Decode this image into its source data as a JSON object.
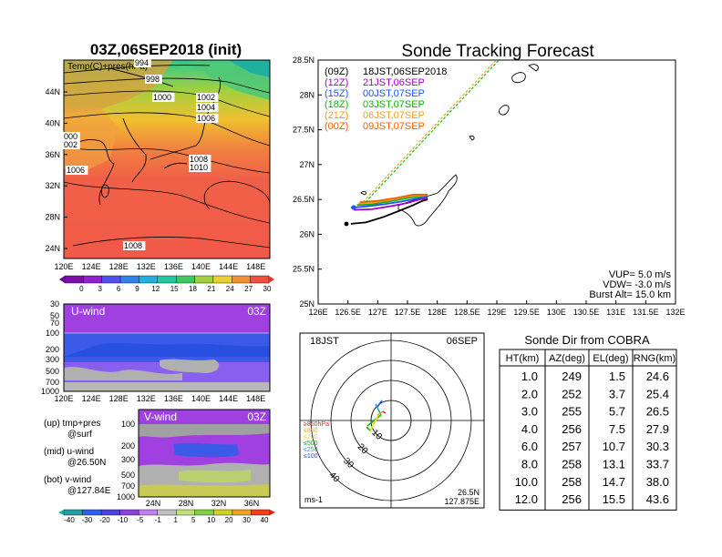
{
  "left_panel": {
    "title": "03Z,06SEP2018 (init)",
    "map_label": "Temp(C)+pres(hPa)",
    "lat_ticks": [
      "44N",
      "40N",
      "36N",
      "32N",
      "28N",
      "24N"
    ],
    "lon_ticks": [
      "120E",
      "124E",
      "128E",
      "132E",
      "136E",
      "140E",
      "144E",
      "148E"
    ],
    "isobar_labels": [
      "994",
      "998",
      "1000",
      "1002",
      "1004",
      "1006",
      "000",
      "002",
      "1006",
      "1008",
      "1010",
      "1008"
    ],
    "temp_colorbar": [
      "0",
      "3",
      "6",
      "9",
      "12",
      "15",
      "18",
      "21",
      "24",
      "27",
      "30"
    ]
  },
  "u_wind_panel": {
    "title": "U-wind",
    "time": "03Z",
    "p_ticks": [
      "30",
      "50",
      "70",
      "100",
      "200",
      "300",
      "500",
      "700",
      "1000"
    ],
    "lon_ticks": [
      "120E",
      "124E",
      "128E",
      "132E",
      "136E",
      "140E",
      "144E",
      "148E"
    ]
  },
  "v_wind_panel": {
    "title": "V-wind",
    "time": "03Z",
    "p_ticks": [
      "100",
      "200",
      "300",
      "500",
      "700",
      "1000"
    ],
    "lat_ticks": [
      "24N",
      "28N",
      "32N",
      "36N"
    ]
  },
  "legend_notes": [
    {
      "label": "(up) tmp+pres",
      "sub": "@surf"
    },
    {
      "label": "(mid) u-wind",
      "sub": "@26.50N"
    },
    {
      "label": "(bot) v-wind",
      "sub": "@127.84E"
    }
  ],
  "wind_colorbar": [
    "-40",
    "-30",
    "-20",
    "-10",
    "-5",
    "-1",
    "1",
    "5",
    "10",
    "20",
    "30",
    "40"
  ],
  "tracking": {
    "title": "Sonde Tracking Forecast",
    "lat_ticks": [
      "28.5N",
      "28N",
      "27.5N",
      "27N",
      "26.5N",
      "26N",
      "25.5N",
      "25N"
    ],
    "lon_ticks": [
      "126E",
      "126.5E",
      "127E",
      "127.5E",
      "128E",
      "128.5E",
      "129E",
      "129.5E",
      "130E",
      "130.5E",
      "131E",
      "131.5E",
      "132E"
    ],
    "legend": [
      {
        "run": "(09Z)",
        "launch": "18JST,06SEP2018",
        "color": "#000000"
      },
      {
        "run": "(12Z)",
        "launch": "21JST,06SEP",
        "color": "#a000c8"
      },
      {
        "run": "(15Z)",
        "launch": "00JST,07SEP",
        "color": "#2050ff"
      },
      {
        "run": "(18Z)",
        "launch": "03JST,07SEP",
        "color": "#10b010"
      },
      {
        "run": "(21Z)",
        "launch": "06JST,07SEP",
        "color": "#f0a020"
      },
      {
        "run": "(00Z)",
        "launch": "09JST,07SEP",
        "color": "#f06000"
      }
    ],
    "params": [
      "VUP= 5.0 m/s",
      "VDW= -3.0 m/s",
      "Burst Alt= 15.0 km"
    ]
  },
  "polar": {
    "time": "18JST",
    "date": "06SEP",
    "ring_labels": [
      "10",
      "20",
      "30",
      "40"
    ],
    "pressure_legend": [
      {
        "label": "≥850hPa",
        "color": "#e02020"
      },
      {
        "label": "≤850",
        "color": "#f0a020"
      },
      {
        "label": "≤700",
        "color": "#e8e020"
      },
      {
        "label": "≤500",
        "color": "#10b010"
      },
      {
        "label": "≤250",
        "color": "#20a0d0"
      },
      {
        "label": "≤100",
        "color": "#2050ff"
      }
    ],
    "units": "ms-1",
    "location": [
      "26.5N",
      "127.875E"
    ]
  },
  "sonde_table": {
    "title": "Sonde Dir from COBRA",
    "headers": [
      "HT(km)",
      "AZ(deg)",
      "EL(deg)",
      "RNG(km)"
    ],
    "rows": [
      [
        "1.0",
        "249",
        "1.5",
        "24.6"
      ],
      [
        "2.0",
        "252",
        "3.7",
        "25.4"
      ],
      [
        "3.0",
        "255",
        "5.7",
        "26.5"
      ],
      [
        "4.0",
        "256",
        "7.5",
        "27.9"
      ],
      [
        "6.0",
        "257",
        "10.7",
        "30.3"
      ],
      [
        "8.0",
        "258",
        "13.1",
        "33.7"
      ],
      [
        "10.0",
        "258",
        "14.7",
        "38.0"
      ],
      [
        "12.0",
        "256",
        "15.5",
        "43.6"
      ]
    ]
  },
  "chart_data": [
    {
      "type": "heatmap",
      "title": "03Z,06SEP2018 (init)",
      "xlabel": "",
      "ylabel": "",
      "x_range": [
        120,
        150
      ],
      "y_range": [
        22,
        48
      ],
      "isobars_hPa": [
        994,
        998,
        1000,
        1002,
        1004,
        1006,
        1008,
        1010
      ],
      "temp_levels_C": [
        0,
        3,
        6,
        9,
        12,
        15,
        18,
        21,
        24,
        27,
        30
      ]
    },
    {
      "type": "line",
      "title": "Sonde Tracking Forecast",
      "x_range": [
        126,
        132
      ],
      "y_range": [
        25,
        28.5
      ],
      "series": [
        {
          "name": "18JST,06SEP2018",
          "x": [
            126.55,
            126.8,
            127.1,
            127.4,
            127.6,
            127.75,
            127.84
          ],
          "y": [
            26.15,
            26.17,
            26.25,
            26.35,
            26.42,
            26.48,
            26.5
          ]
        },
        {
          "name": "21JST,06SEP",
          "x": [
            126.6,
            126.9,
            127.2,
            127.5,
            127.7,
            127.84
          ],
          "y": [
            26.35,
            26.36,
            26.4,
            26.45,
            26.5,
            26.52
          ]
        },
        {
          "name": "00JST,07SEP",
          "x": [
            126.55,
            126.8,
            127.1,
            127.4,
            127.7,
            127.84
          ],
          "y": [
            26.38,
            26.4,
            26.43,
            26.47,
            26.52,
            26.54
          ]
        },
        {
          "name": "03JST,07SEP",
          "x": [
            126.65,
            126.9,
            127.2,
            127.5,
            127.75,
            127.84
          ],
          "y": [
            26.42,
            26.43,
            26.47,
            26.52,
            26.55,
            26.55
          ]
        },
        {
          "name": "06JST,07SEP",
          "x": [
            126.68,
            126.95,
            127.25,
            127.55,
            127.8
          ],
          "y": [
            26.44,
            26.46,
            26.5,
            26.55,
            26.56
          ]
        },
        {
          "name": "09JST,07SEP",
          "x": [
            126.7,
            127.0,
            127.3,
            127.6,
            127.84
          ],
          "y": [
            26.46,
            26.48,
            26.52,
            26.57,
            26.57
          ]
        }
      ]
    },
    {
      "type": "table",
      "title": "Sonde Dir from COBRA",
      "columns": [
        "HT(km)",
        "AZ(deg)",
        "EL(deg)",
        "RNG(km)"
      ],
      "rows": [
        [
          1.0,
          249,
          1.5,
          24.6
        ],
        [
          2.0,
          252,
          3.7,
          25.4
        ],
        [
          3.0,
          255,
          5.7,
          26.5
        ],
        [
          4.0,
          256,
          7.5,
          27.9
        ],
        [
          6.0,
          257,
          10.7,
          30.3
        ],
        [
          8.0,
          258,
          13.1,
          33.7
        ],
        [
          10.0,
          258,
          14.7,
          38.0
        ],
        [
          12.0,
          256,
          15.5,
          43.6
        ]
      ]
    }
  ]
}
